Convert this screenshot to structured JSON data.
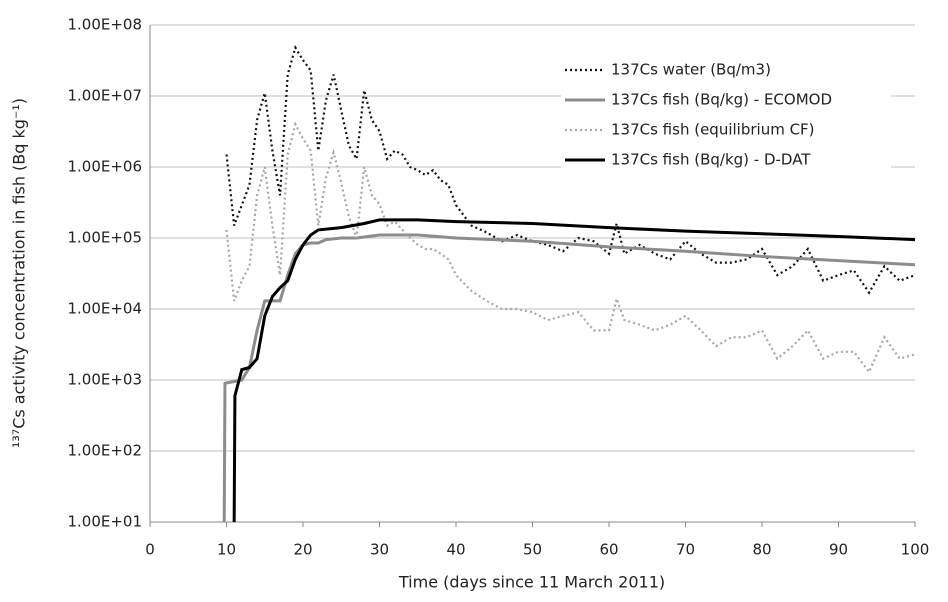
{
  "chart_data": {
    "type": "line",
    "xlabel": "Time (days since 11 March 2011)",
    "ylabel": "¹³⁷Cs activity concentration in fish (Bq kg⁻¹)",
    "log_y": true,
    "grid": true,
    "legend": "top-right",
    "xlim": [
      0,
      100
    ],
    "xticks": [
      0,
      10,
      20,
      30,
      40,
      50,
      60,
      70,
      80,
      90,
      100
    ],
    "ylim": [
      10,
      100000000
    ],
    "yticks": [
      {
        "value": 10,
        "label": "1.00E+01"
      },
      {
        "value": 100,
        "label": "1.00E+02"
      },
      {
        "value": 1000,
        "label": "1.00E+03"
      },
      {
        "value": 10000,
        "label": "1.00E+04"
      },
      {
        "value": 100000,
        "label": "1.00E+05"
      },
      {
        "value": 1000000,
        "label": "1.00E+06"
      },
      {
        "value": 10000000,
        "label": "1.00E+07"
      },
      {
        "value": 100000000,
        "label": "1.00E+08"
      }
    ],
    "series": [
      {
        "name": "137Cs water (Bq/m3)",
        "color": "#111111",
        "dash": "dotted",
        "x": [
          10,
          11,
          12,
          13,
          14,
          15,
          16,
          17,
          18,
          19,
          20,
          21,
          22,
          23,
          24,
          25,
          26,
          27,
          28,
          29,
          30,
          31,
          32,
          33,
          34,
          35,
          36,
          37,
          38,
          39,
          40,
          42,
          44,
          46,
          48,
          50,
          52,
          54,
          56,
          58,
          60,
          61,
          62,
          64,
          66,
          68,
          70,
          72,
          74,
          76,
          78,
          80,
          82,
          84,
          86,
          88,
          90,
          92,
          94,
          96,
          98,
          100
        ],
        "values": [
          1500000,
          150000,
          290000,
          560000,
          4600000,
          11000000,
          1700000,
          400000,
          20000000,
          48000000,
          32000000,
          23000000,
          1700000,
          8700000,
          20000000,
          6300000,
          2000000,
          1300000,
          12000000,
          4600000,
          3200000,
          1300000,
          1700000,
          1500000,
          1000000,
          900000,
          770000,
          900000,
          650000,
          560000,
          290000,
          150000,
          120000,
          90000,
          110000,
          90000,
          80000,
          65000,
          100000,
          90000,
          60000,
          160000,
          60000,
          80000,
          60000,
          50000,
          90000,
          60000,
          45000,
          45000,
          50000,
          70000,
          30000,
          40000,
          70000,
          25000,
          30000,
          35000,
          17000,
          40000,
          25000,
          30000
        ]
      },
      {
        "name": "137Cs fish (Bq/kg) - ECOMOD",
        "color": "#8c8c8c",
        "dash": "solid",
        "x": [
          9.7,
          9.8,
          12,
          13,
          14,
          15,
          17,
          18,
          19,
          20,
          21,
          22,
          23,
          25,
          27,
          30,
          35,
          40,
          50,
          60,
          70,
          80,
          90,
          100
        ],
        "values": [
          10,
          900,
          1000,
          1500,
          5000,
          13000,
          13000,
          30000,
          60000,
          80000,
          85000,
          85000,
          95000,
          100000,
          100000,
          110000,
          110000,
          100000,
          90000,
          75000,
          65000,
          55000,
          48000,
          42000
        ]
      },
      {
        "name": "137Cs fish (equilibrium CF)",
        "color": "#a6a6a6",
        "dash": "dotted",
        "x": [
          10,
          11,
          12,
          13,
          14,
          15,
          16,
          17,
          18,
          19,
          20,
          21,
          22,
          23,
          24,
          25,
          26,
          27,
          28,
          29,
          30,
          31,
          32,
          33,
          34,
          35,
          36,
          37,
          38,
          39,
          40,
          42,
          44,
          46,
          48,
          50,
          52,
          54,
          56,
          58,
          60,
          61,
          62,
          64,
          66,
          68,
          70,
          72,
          74,
          76,
          78,
          80,
          82,
          84,
          86,
          88,
          90,
          92,
          94,
          96,
          98,
          100
        ],
        "values": [
          130000,
          13000,
          25000,
          40000,
          400000,
          1000000,
          150000,
          30000,
          1500000,
          4000000,
          2500000,
          1700000,
          150000,
          700000,
          1600000,
          600000,
          200000,
          100000,
          1000000,
          400000,
          300000,
          150000,
          170000,
          130000,
          100000,
          80000,
          70000,
          70000,
          60000,
          50000,
          30000,
          18000,
          13000,
          10000,
          10000,
          9000,
          7000,
          8000,
          9000,
          5000,
          5000,
          14000,
          7000,
          6000,
          5000,
          6000,
          8000,
          5000,
          3000,
          4000,
          4000,
          5000,
          2000,
          3000,
          5000,
          2000,
          2500,
          2500,
          1300,
          4000,
          2000,
          2300
        ]
      },
      {
        "name": "137Cs fish (Bq/kg) - D-DAT",
        "color": "#000000",
        "dash": "solid",
        "x": [
          11,
          11.1,
          12,
          13,
          14,
          15,
          16,
          17,
          18,
          19,
          20,
          21,
          22,
          25,
          28,
          30,
          35,
          40,
          50,
          60,
          70,
          80,
          90,
          100
        ],
        "values": [
          10,
          600,
          1400,
          1500,
          2000,
          8000,
          15000,
          20000,
          25000,
          50000,
          80000,
          110000,
          130000,
          140000,
          160000,
          180000,
          180000,
          170000,
          160000,
          140000,
          125000,
          115000,
          105000,
          95000
        ]
      }
    ]
  }
}
